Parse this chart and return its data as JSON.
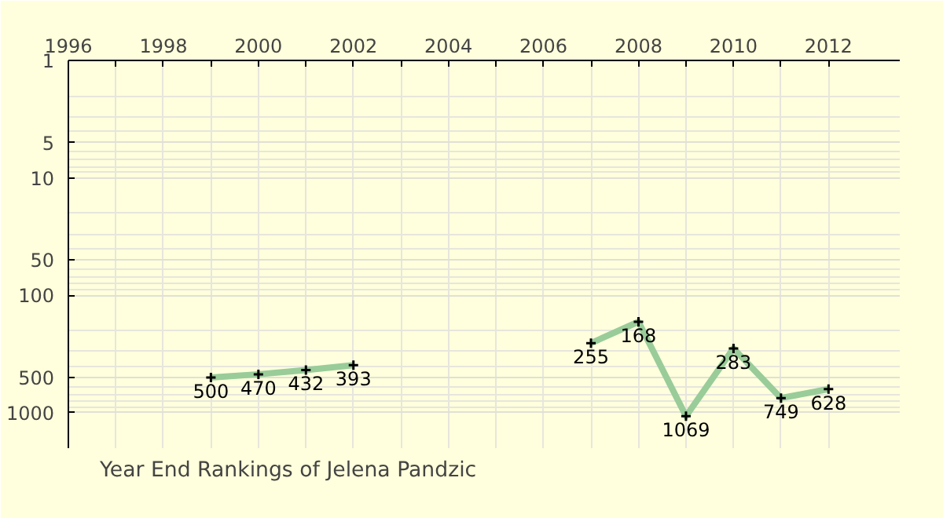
{
  "chart_data": {
    "type": "line",
    "title": "Year End Rankings of  Jelena Pandzic",
    "x": [
      1999,
      2000,
      2001,
      2002,
      2007,
      2008,
      2009,
      2010,
      2011,
      2012
    ],
    "series": [
      {
        "color": "#99cc99",
        "values": [
          500,
          470,
          432,
          393,
          null,
          null,
          null,
          null,
          null,
          null
        ]
      },
      {
        "color": "#99cc99",
        "values": [
          null,
          null,
          null,
          null,
          255,
          168,
          1069,
          283,
          749,
          628
        ]
      }
    ],
    "xlim": [
      1996,
      2013.5
    ],
    "xticks": [
      1996,
      {
        "value": 1997,
        "label": null
      },
      1998,
      {
        "value": 1999,
        "label": null
      },
      2000,
      {
        "value": 2001,
        "label": null
      },
      2002,
      {
        "value": 2003,
        "label": null
      },
      2004,
      {
        "value": 2005,
        "label": null
      },
      2006,
      {
        "value": 2007,
        "label": null
      },
      2008,
      {
        "value": 2009,
        "label": null
      },
      2010,
      {
        "value": 2011,
        "label": null
      },
      2012
    ],
    "ylim": [
      2000,
      1
    ],
    "yticks": [
      1,
      5,
      10,
      50,
      100,
      500,
      1000
    ],
    "log": true,
    "grid": true,
    "marker": "cross",
    "line_style": "solid",
    "data_labels": true
  }
}
